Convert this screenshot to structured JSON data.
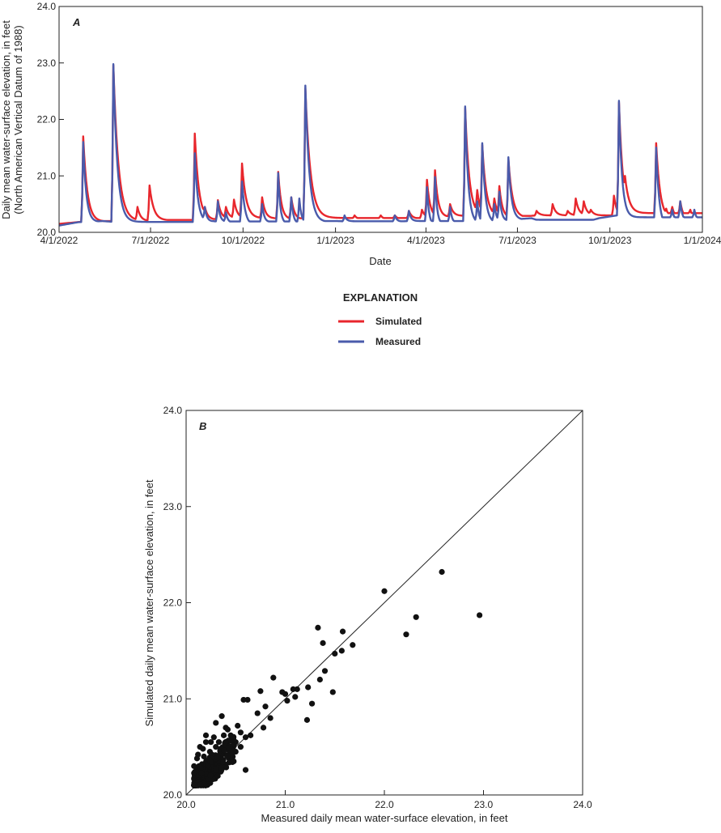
{
  "chart_data": [
    {
      "type": "line",
      "panel": "A",
      "title": "",
      "xlabel": "Date",
      "ylabel": "Daily mean water-surface elevation, in feet",
      "ylabel2": "(North American Vertical Datum of 1988)",
      "xlim": [
        "2022-04-01",
        "2024-01-01"
      ],
      "ylim": [
        20.0,
        24.0
      ],
      "x_ticks": [
        "4/1/2022",
        "7/1/2022",
        "10/1/2022",
        "1/1/2023",
        "4/1/2023",
        "7/1/2023",
        "10/1/2023",
        "1/1/2024"
      ],
      "y_ticks": [
        "20.0",
        "21.0",
        "22.0",
        "23.0",
        "24.0"
      ],
      "grid": false,
      "legend_title": "EXPLANATION",
      "legend_position": "below",
      "series": [
        {
          "name": "Simulated",
          "color": "#e8262c",
          "baseline": [
            [
              "2022-04-01",
              20.15
            ],
            [
              "2022-05-01",
              20.2
            ],
            [
              "2022-06-15",
              20.2
            ],
            [
              "2022-07-10",
              20.22
            ],
            [
              "2022-08-20",
              20.22
            ],
            [
              "2022-09-15",
              20.25
            ],
            [
              "2022-10-15",
              20.25
            ],
            [
              "2022-11-15",
              20.22
            ],
            [
              "2022-12-01",
              20.25
            ],
            [
              "2022-12-15",
              20.3
            ],
            [
              "2023-01-15",
              20.22
            ],
            [
              "2023-02-20",
              20.22
            ],
            [
              "2023-03-25",
              20.25
            ],
            [
              "2023-05-01",
              20.3
            ],
            [
              "2023-06-15",
              20.25
            ],
            [
              "2023-07-20",
              20.3
            ],
            [
              "2023-08-15",
              20.3
            ],
            [
              "2023-09-15",
              20.3
            ],
            [
              "2023-10-10",
              20.25
            ],
            [
              "2023-10-20",
              20.4
            ],
            [
              "2023-11-05",
              20.22
            ],
            [
              "2023-11-30",
              20.22
            ],
            [
              "2024-01-01",
              20.2
            ]
          ],
          "events": [
            [
              "2022-04-25",
              21.7,
              4
            ],
            [
              "2022-05-25",
              22.96,
              5
            ],
            [
              "2022-06-18",
              20.45,
              3
            ],
            [
              "2022-06-30",
              20.83,
              4
            ],
            [
              "2022-08-14",
              21.75,
              4
            ],
            [
              "2022-08-24",
              20.45,
              3
            ],
            [
              "2022-09-06",
              20.57,
              3
            ],
            [
              "2022-09-14",
              20.45,
              3
            ],
            [
              "2022-09-22",
              20.58,
              3
            ],
            [
              "2022-09-30",
              21.22,
              4
            ],
            [
              "2022-10-20",
              20.62,
              3
            ],
            [
              "2022-11-05",
              21.07,
              3
            ],
            [
              "2022-11-18",
              20.62,
              3
            ],
            [
              "2022-12-02",
              22.55,
              5
            ],
            [
              "2023-01-20",
              20.3,
              3
            ],
            [
              "2023-02-15",
              20.3,
              3
            ],
            [
              "2023-03-01",
              20.3,
              3
            ],
            [
              "2023-03-15",
              20.38,
              3
            ],
            [
              "2023-03-28",
              20.4,
              3
            ],
            [
              "2023-04-02",
              20.93,
              3
            ],
            [
              "2023-04-10",
              21.1,
              3
            ],
            [
              "2023-04-25",
              20.5,
              3
            ],
            [
              "2023-05-10",
              22.2,
              4
            ],
            [
              "2023-05-22",
              20.75,
              3
            ],
            [
              "2023-05-27",
              21.55,
              4
            ],
            [
              "2023-06-08",
              20.6,
              3
            ],
            [
              "2023-06-13",
              20.82,
              3
            ],
            [
              "2023-06-22",
              21.3,
              4
            ],
            [
              "2023-07-20",
              20.38,
              3
            ],
            [
              "2023-08-05",
              20.5,
              3
            ],
            [
              "2023-08-20",
              20.38,
              3
            ],
            [
              "2023-08-28",
              20.6,
              3
            ],
            [
              "2023-09-05",
              20.55,
              3
            ],
            [
              "2023-09-12",
              20.4,
              3
            ],
            [
              "2023-10-05",
              20.65,
              3
            ],
            [
              "2023-10-10",
              22.3,
              4
            ],
            [
              "2023-10-16",
              21.0,
              4
            ],
            [
              "2023-11-16",
              21.58,
              4
            ],
            [
              "2023-11-26",
              20.42,
              3
            ],
            [
              "2023-12-02",
              20.45,
              3
            ],
            [
              "2023-12-10",
              20.55,
              3
            ],
            [
              "2023-12-20",
              20.4,
              3
            ]
          ]
        },
        {
          "name": "Measured",
          "color": "#4a5bab",
          "baseline": [
            [
              "2022-04-01",
              20.12
            ],
            [
              "2022-04-20",
              20.18
            ],
            [
              "2022-05-15",
              20.2
            ],
            [
              "2022-06-15",
              20.15
            ],
            [
              "2022-07-15",
              20.15
            ],
            [
              "2022-08-10",
              20.18
            ],
            [
              "2022-09-01",
              20.2
            ],
            [
              "2022-10-01",
              20.12
            ],
            [
              "2022-10-20",
              20.18
            ],
            [
              "2022-11-01",
              20.15
            ],
            [
              "2022-11-20",
              20.15
            ],
            [
              "2022-12-10",
              20.2
            ],
            [
              "2023-01-01",
              20.2
            ],
            [
              "2023-02-15",
              20.18
            ],
            [
              "2023-03-15",
              20.2
            ],
            [
              "2023-04-01",
              20.12
            ],
            [
              "2023-04-20",
              20.15
            ],
            [
              "2023-05-20",
              20.15
            ],
            [
              "2023-06-20",
              20.22
            ],
            [
              "2023-07-15",
              20.25
            ],
            [
              "2023-08-01",
              20.15
            ],
            [
              "2023-08-20",
              20.08
            ],
            [
              "2023-09-01",
              20.15
            ],
            [
              "2023-09-20",
              20.25
            ],
            [
              "2023-10-08",
              20.3
            ],
            [
              "2023-10-20",
              20.1
            ],
            [
              "2023-11-14",
              20.05
            ],
            [
              "2023-11-25",
              20.2
            ],
            [
              "2023-12-20",
              20.2
            ],
            [
              "2024-01-01",
              20.22
            ]
          ],
          "events": [
            [
              "2022-04-25",
              21.6,
              3
            ],
            [
              "2022-05-25",
              22.98,
              4
            ],
            [
              "2022-08-14",
              21.4,
              3
            ],
            [
              "2022-08-24",
              20.45,
              2
            ],
            [
              "2022-09-06",
              20.55,
              2
            ],
            [
              "2022-09-14",
              20.35,
              2
            ],
            [
              "2022-09-30",
              20.9,
              3
            ],
            [
              "2022-10-20",
              20.5,
              2
            ],
            [
              "2022-11-05",
              21.05,
              2
            ],
            [
              "2022-11-18",
              20.62,
              2
            ],
            [
              "2022-11-26",
              20.6,
              2
            ],
            [
              "2022-12-02",
              22.6,
              4
            ],
            [
              "2023-01-10",
              20.3,
              2
            ],
            [
              "2023-03-01",
              20.3,
              2
            ],
            [
              "2023-03-15",
              20.38,
              2
            ],
            [
              "2023-04-02",
              20.8,
              2
            ],
            [
              "2023-04-10",
              20.98,
              2
            ],
            [
              "2023-04-25",
              20.45,
              2
            ],
            [
              "2023-05-10",
              22.23,
              3
            ],
            [
              "2023-05-22",
              20.55,
              2
            ],
            [
              "2023-05-27",
              21.58,
              3
            ],
            [
              "2023-06-08",
              20.5,
              2
            ],
            [
              "2023-06-13",
              20.72,
              2
            ],
            [
              "2023-06-22",
              21.33,
              3
            ],
            [
              "2023-10-10",
              22.33,
              3
            ],
            [
              "2023-10-16",
              20.55,
              2
            ],
            [
              "2023-11-16",
              21.5,
              3
            ],
            [
              "2023-12-02",
              20.4,
              2
            ],
            [
              "2023-12-10",
              20.55,
              2
            ],
            [
              "2023-12-24",
              20.4,
              2
            ]
          ]
        }
      ]
    },
    {
      "type": "scatter",
      "panel": "B",
      "title": "",
      "xlabel": "Measured daily mean water-surface elevation, in feet",
      "ylabel": "Simulated daily mean water-surface elevation, in feet",
      "xlim": [
        20.0,
        24.0
      ],
      "ylim": [
        20.0,
        24.0
      ],
      "x_ticks": [
        "20.0",
        "21.0",
        "22.0",
        "23.0",
        "24.0"
      ],
      "y_ticks": [
        "20.0",
        "21.0",
        "22.0",
        "23.0",
        "24.0"
      ],
      "grid": false,
      "one_to_one_line": true,
      "point_color": "#111111",
      "points": [
        [
          22.96,
          21.87
        ],
        [
          22.58,
          22.32
        ],
        [
          22.32,
          21.85
        ],
        [
          22.22,
          21.67
        ],
        [
          22.0,
          22.12
        ],
        [
          21.68,
          21.56
        ],
        [
          21.58,
          21.7
        ],
        [
          21.57,
          21.5
        ],
        [
          21.5,
          21.47
        ],
        [
          21.48,
          21.07
        ],
        [
          21.4,
          21.29
        ],
        [
          21.38,
          21.58
        ],
        [
          21.35,
          21.2
        ],
        [
          21.33,
          21.74
        ],
        [
          21.27,
          20.95
        ],
        [
          21.23,
          21.12
        ],
        [
          21.22,
          20.78
        ],
        [
          21.12,
          21.1
        ],
        [
          21.1,
          21.02
        ],
        [
          21.08,
          21.1
        ],
        [
          21.02,
          20.98
        ],
        [
          21.0,
          21.05
        ],
        [
          20.97,
          21.07
        ],
        [
          20.88,
          21.22
        ],
        [
          20.85,
          20.8
        ],
        [
          20.8,
          20.92
        ],
        [
          20.78,
          20.7
        ],
        [
          20.75,
          21.08
        ],
        [
          20.72,
          20.85
        ],
        [
          20.65,
          20.62
        ],
        [
          20.62,
          20.99
        ],
        [
          20.6,
          20.26
        ],
        [
          20.58,
          20.99
        ],
        [
          20.55,
          20.65
        ],
        [
          20.52,
          20.72
        ],
        [
          20.5,
          20.45
        ],
        [
          20.45,
          20.62
        ],
        [
          20.42,
          20.55
        ],
        [
          20.4,
          20.7
        ],
        [
          20.38,
          20.5
        ],
        [
          20.36,
          20.82
        ],
        [
          20.35,
          20.4
        ],
        [
          20.33,
          20.3
        ],
        [
          20.3,
          20.5
        ],
        [
          20.28,
          20.6
        ],
        [
          20.26,
          20.25
        ],
        [
          20.24,
          20.45
        ],
        [
          20.22,
          20.35
        ],
        [
          20.21,
          20.22
        ],
        [
          20.2,
          20.55
        ],
        [
          20.19,
          20.28
        ],
        [
          20.18,
          20.4
        ],
        [
          20.17,
          20.18
        ],
        [
          20.16,
          20.32
        ],
        [
          20.15,
          20.22
        ],
        [
          20.14,
          20.5
        ],
        [
          20.13,
          20.3
        ],
        [
          20.12,
          20.2
        ],
        [
          20.11,
          20.38
        ],
        [
          20.1,
          20.25
        ],
        [
          20.09,
          20.2
        ],
        [
          20.08,
          20.3
        ],
        [
          20.3,
          20.2
        ],
        [
          20.32,
          20.4
        ],
        [
          20.28,
          20.33
        ],
        [
          20.25,
          20.55
        ],
        [
          20.23,
          20.28
        ],
        [
          20.2,
          20.12
        ],
        [
          20.18,
          20.15
        ],
        [
          20.15,
          20.12
        ],
        [
          20.27,
          20.22
        ],
        [
          20.22,
          20.18
        ],
        [
          20.35,
          20.25
        ],
        [
          20.4,
          20.3
        ],
        [
          20.45,
          20.42
        ],
        [
          20.5,
          20.55
        ],
        [
          20.55,
          20.5
        ],
        [
          20.6,
          20.6
        ],
        [
          20.48,
          20.35
        ],
        [
          20.38,
          20.62
        ],
        [
          20.33,
          20.55
        ],
        [
          20.26,
          20.42
        ],
        [
          20.24,
          20.15
        ],
        [
          20.2,
          20.62
        ],
        [
          20.17,
          20.48
        ],
        [
          20.14,
          20.12
        ],
        [
          20.12,
          20.42
        ],
        [
          20.1,
          20.15
        ],
        [
          20.42,
          20.68
        ],
        [
          20.36,
          20.28
        ],
        [
          20.3,
          20.75
        ],
        [
          20.34,
          20.35
        ]
      ]
    }
  ]
}
